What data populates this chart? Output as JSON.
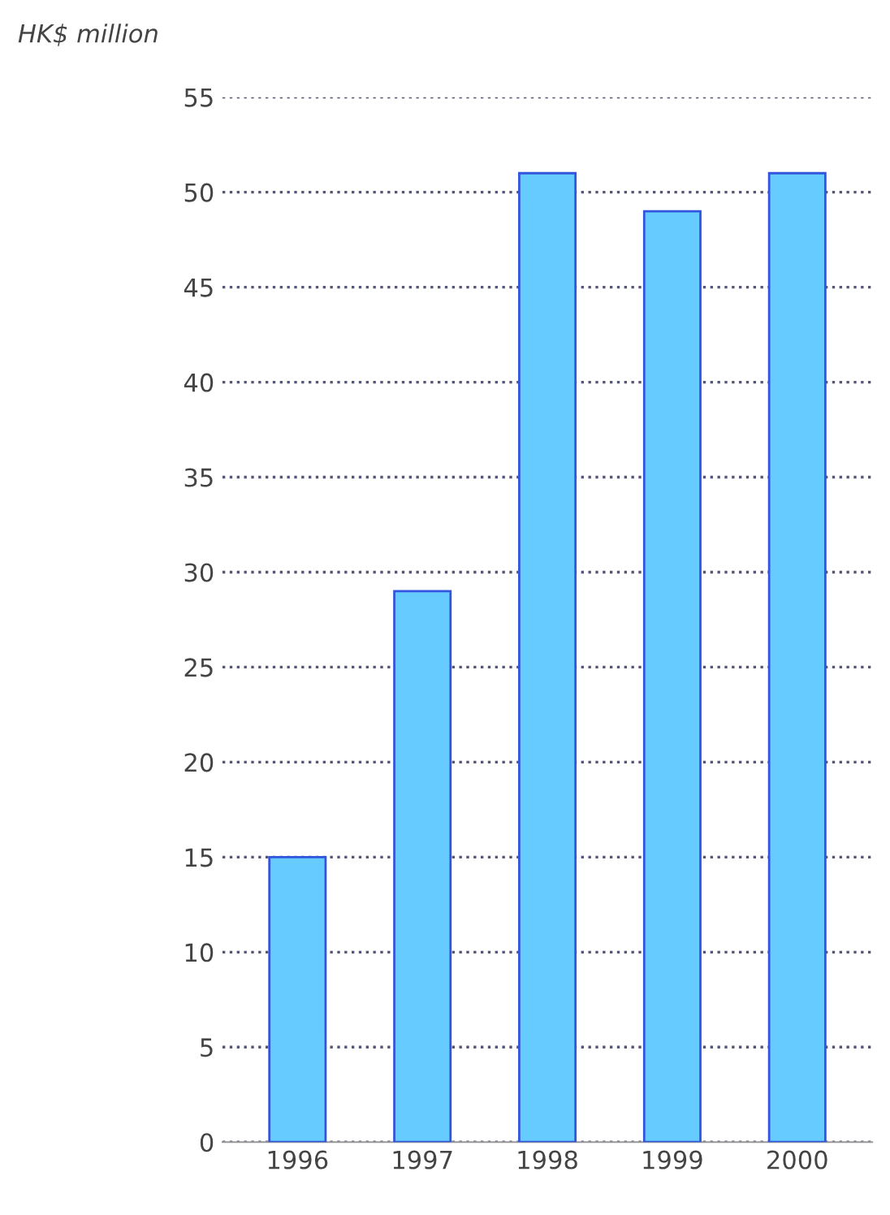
{
  "chart_data": {
    "type": "bar",
    "ylabel": "HK$ million",
    "categories": [
      "1996",
      "1997",
      "1998",
      "1999",
      "2000"
    ],
    "values": [
      15,
      29,
      51,
      49,
      51
    ],
    "color": "#66ccff",
    "ylim": [
      0,
      55
    ],
    "yticks": [
      0,
      5,
      10,
      15,
      20,
      25,
      30,
      35,
      40,
      45,
      50,
      55
    ],
    "grid": "y",
    "legend": false
  }
}
